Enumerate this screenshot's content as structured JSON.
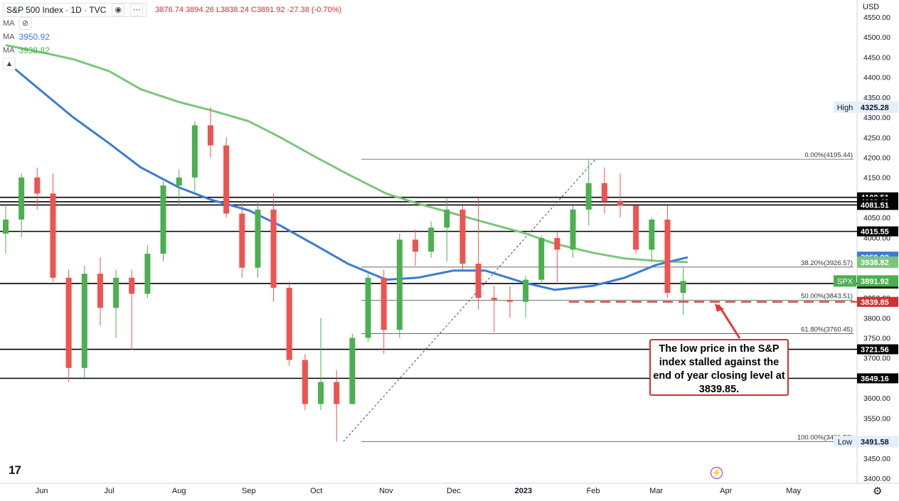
{
  "header": {
    "symbol_title": "S&P 500 Index · 1D · TVC",
    "ohlc": "3876.74 3894.26 L3838.24 C3891.92 -27.38 (-0.70%)",
    "ma_rows": [
      {
        "label": "MA",
        "value": ""
      },
      {
        "label": "MA",
        "value": "3950.92"
      },
      {
        "label": "MA",
        "value": "3938.82"
      }
    ]
  },
  "colors": {
    "up": "#4caf50",
    "down": "#ef5350",
    "ma_fast": "#3a7bd5",
    "ma_slow": "#7bc67b",
    "callout_border": "#d32f2f",
    "red_dashed": "#d32f2f"
  },
  "currency_label": "USD",
  "callout_text": "The low price in the S&P index stalled against the end of year closing level at 3839.85.",
  "chart_data": {
    "type": "candlestick",
    "y_axis": {
      "min": 3400,
      "max": 4560,
      "ticks": [
        3400,
        3450,
        3500,
        3550,
        3600,
        3650,
        3700,
        3750,
        3800,
        3850,
        3900,
        3950,
        4000,
        4050,
        4100,
        4150,
        4200,
        4250,
        4300,
        4350,
        4400,
        4450,
        4500,
        4550
      ]
    },
    "x_axis_labels": [
      "Jun",
      "Jul",
      "Aug",
      "Sep",
      "Oct",
      "Nov",
      "Dec",
      "2023",
      "Feb",
      "Mar",
      "Apr",
      "May"
    ],
    "horizontal_levels": [
      {
        "value": 4100.51,
        "label": "4100.51"
      },
      {
        "value": 4089.49,
        "label": "4089.49"
      },
      {
        "value": 4081.51,
        "label": "4081.51"
      },
      {
        "value": 4015.55,
        "label": "4015.55"
      },
      {
        "value": 3885.54,
        "label": "3885.54"
      },
      {
        "value": 3721.56,
        "label": "3721.56"
      },
      {
        "value": 3649.16,
        "label": "3649.16"
      }
    ],
    "dashed_level": {
      "value": 3839.85,
      "label": "3839.85"
    },
    "fibonacci": [
      {
        "value": 4195.44,
        "label": "0.00%(4195.44)"
      },
      {
        "value": 3926.57,
        "label": "38.20%(3926.57)"
      },
      {
        "value": 3843.51,
        "label": "50.00%(3843.51)"
      },
      {
        "value": 3760.45,
        "label": "61.80%(3760.45)"
      },
      {
        "value": 3491.58,
        "label": "100.00%(3491.58)"
      }
    ],
    "price_badges": [
      {
        "tag": "High",
        "value": 4325.28
      },
      {
        "tag": "",
        "value": 3950.92
      },
      {
        "tag": "",
        "value": 3938.82
      },
      {
        "tag": "SPX",
        "value": 3891.92
      },
      {
        "tag": "Low",
        "value": 3491.58
      }
    ],
    "ma_fast_series": [
      [
        "2022-05-16",
        4440
      ],
      [
        "2022-06-01",
        4365
      ],
      [
        "2022-06-15",
        4300
      ],
      [
        "2022-07-01",
        4235
      ],
      [
        "2022-07-15",
        4175
      ],
      [
        "2022-08-01",
        4125
      ],
      [
        "2022-08-15",
        4095
      ],
      [
        "2022-09-01",
        4068
      ],
      [
        "2022-09-15",
        4030
      ],
      [
        "2022-10-01",
        3980
      ],
      [
        "2022-10-15",
        3935
      ],
      [
        "2022-11-01",
        3895
      ],
      [
        "2022-11-15",
        3900
      ],
      [
        "2022-12-01",
        3918
      ],
      [
        "2022-12-15",
        3918
      ],
      [
        "2023-01-01",
        3888
      ],
      [
        "2023-01-15",
        3870
      ],
      [
        "2023-02-01",
        3880
      ],
      [
        "2023-02-15",
        3900
      ],
      [
        "2023-03-01",
        3932
      ],
      [
        "2023-03-15",
        3950.92
      ]
    ],
    "ma_slow_series": [
      [
        "2022-05-16",
        4480
      ],
      [
        "2022-06-01",
        4462
      ],
      [
        "2022-06-15",
        4445
      ],
      [
        "2022-07-01",
        4415
      ],
      [
        "2022-07-15",
        4370
      ],
      [
        "2022-08-01",
        4338
      ],
      [
        "2022-08-15",
        4318
      ],
      [
        "2022-09-01",
        4290
      ],
      [
        "2022-09-15",
        4250
      ],
      [
        "2022-10-01",
        4200
      ],
      [
        "2022-10-15",
        4158
      ],
      [
        "2022-11-01",
        4110
      ],
      [
        "2022-11-15",
        4085
      ],
      [
        "2022-12-01",
        4060
      ],
      [
        "2022-12-15",
        4038
      ],
      [
        "2023-01-01",
        4012
      ],
      [
        "2023-01-15",
        3985
      ],
      [
        "2023-02-01",
        3962
      ],
      [
        "2023-02-15",
        3948
      ],
      [
        "2023-03-01",
        3942
      ],
      [
        "2023-03-15",
        3938.82
      ]
    ],
    "candles": [
      [
        "2022-05-16",
        4010,
        4045,
        3960,
        4085
      ],
      [
        "2022-05-23",
        4045,
        4150,
        4000,
        4160
      ],
      [
        "2022-05-30",
        4150,
        4110,
        4070,
        4175
      ],
      [
        "2022-06-06",
        4110,
        3900,
        3890,
        4160
      ],
      [
        "2022-06-13",
        3900,
        3675,
        3640,
        3920
      ],
      [
        "2022-06-20",
        3675,
        3910,
        3650,
        3930
      ],
      [
        "2022-06-27",
        3910,
        3825,
        3780,
        3950
      ],
      [
        "2022-07-04",
        3825,
        3900,
        3750,
        3920
      ],
      [
        "2022-07-11",
        3900,
        3860,
        3720,
        3920
      ],
      [
        "2022-07-18",
        3860,
        3960,
        3850,
        3980
      ],
      [
        "2022-07-25",
        3960,
        4130,
        3940,
        4140
      ],
      [
        "2022-08-01",
        4130,
        4150,
        4080,
        4170
      ],
      [
        "2022-08-08",
        4150,
        4280,
        4110,
        4290
      ],
      [
        "2022-08-15",
        4280,
        4230,
        4200,
        4325
      ],
      [
        "2022-08-22",
        4230,
        4060,
        4050,
        4250
      ],
      [
        "2022-08-29",
        4060,
        3925,
        3900,
        4090
      ],
      [
        "2022-09-05",
        3925,
        4070,
        3900,
        4090
      ],
      [
        "2022-09-12",
        4070,
        3875,
        3840,
        4110
      ],
      [
        "2022-09-19",
        3875,
        3695,
        3680,
        3890
      ],
      [
        "2022-09-26",
        3695,
        3585,
        3570,
        3710
      ],
      [
        "2022-10-03",
        3585,
        3640,
        3570,
        3800
      ],
      [
        "2022-10-10",
        3640,
        3585,
        3491.58,
        3670
      ],
      [
        "2022-10-17",
        3585,
        3750,
        3585,
        3760
      ],
      [
        "2022-10-24",
        3750,
        3900,
        3740,
        3910
      ],
      [
        "2022-10-31",
        3900,
        3770,
        3710,
        3920
      ],
      [
        "2022-11-07",
        3770,
        3995,
        3750,
        4010
      ],
      [
        "2022-11-14",
        3995,
        3965,
        3930,
        4020
      ],
      [
        "2022-11-21",
        3965,
        4025,
        3950,
        4040
      ],
      [
        "2022-11-28",
        4025,
        4070,
        3940,
        4100
      ],
      [
        "2022-12-05",
        4070,
        3935,
        3920,
        4080
      ],
      [
        "2022-12-12",
        3935,
        3850,
        3820,
        4100
      ],
      [
        "2022-12-19",
        3850,
        3845,
        3765,
        3880
      ],
      [
        "2022-12-26",
        3845,
        3839.85,
        3800,
        3880
      ],
      [
        "2023-01-02",
        3840,
        3895,
        3800,
        3905
      ],
      [
        "2023-01-09",
        3895,
        3999,
        3885,
        4005
      ],
      [
        "2023-01-16",
        3999,
        3970,
        3885,
        4015
      ],
      [
        "2023-01-23",
        3970,
        4070,
        3950,
        4080
      ],
      [
        "2023-01-30",
        4070,
        4136,
        4030,
        4195.44
      ],
      [
        "2023-02-06",
        4136,
        4090,
        4060,
        4175
      ],
      [
        "2023-02-13",
        4090,
        4080,
        4050,
        4160
      ],
      [
        "2023-02-20",
        4080,
        3970,
        3960,
        4080
      ],
      [
        "2023-02-27",
        3970,
        4045,
        3940,
        4050
      ],
      [
        "2023-03-06",
        4045,
        3862,
        3850,
        4080
      ],
      [
        "2023-03-13",
        3862,
        3891.92,
        3808,
        3925
      ]
    ],
    "diagonal_line": {
      "from": [
        "2022-10-13",
        3491.58
      ],
      "to": [
        "2023-02-02",
        4195.44
      ]
    }
  }
}
